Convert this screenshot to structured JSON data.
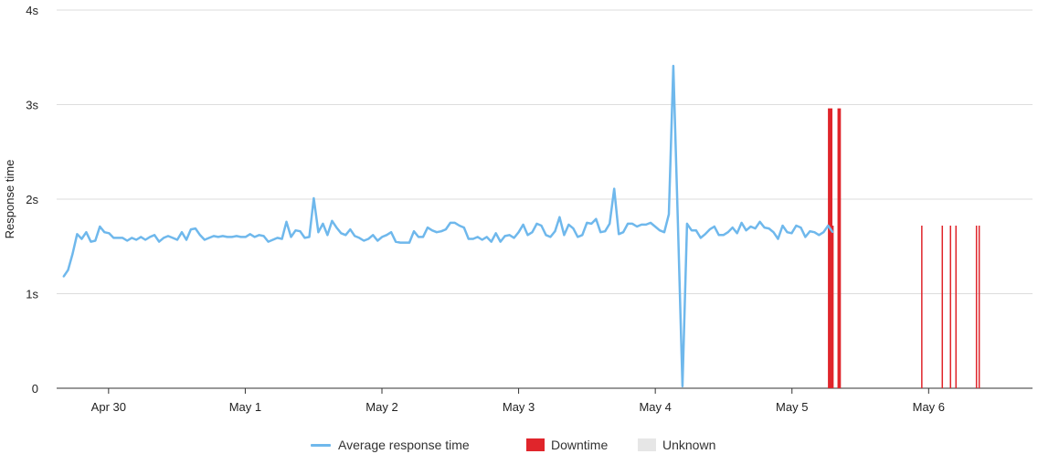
{
  "chart_data": {
    "type": "line",
    "title": "",
    "xlabel": "",
    "ylabel": "Response time",
    "ylim": [
      0,
      4
    ],
    "yticks": [
      {
        "value": 0,
        "label": "0"
      },
      {
        "value": 1,
        "label": "1s"
      },
      {
        "value": 2,
        "label": "2s"
      },
      {
        "value": 3,
        "label": "3s"
      },
      {
        "value": 4,
        "label": "4s"
      }
    ],
    "xticks": [
      {
        "value": 0,
        "label": "Apr 30"
      },
      {
        "value": 1,
        "label": "May 1"
      },
      {
        "value": 2,
        "label": "May 2"
      },
      {
        "value": 3,
        "label": "May 3"
      },
      {
        "value": 4,
        "label": "May 4"
      },
      {
        "value": 5,
        "label": "May 5"
      },
      {
        "value": 6,
        "label": "May 6"
      }
    ],
    "xlim": [
      -0.38,
      6.76
    ],
    "grid": true,
    "legend_position": "bottom",
    "series": [
      {
        "name": "Average response time",
        "color": "#6fb8ec",
        "x_start": -0.33,
        "x_step": 0.0333,
        "values": [
          1.18,
          1.25,
          1.42,
          1.63,
          1.58,
          1.65,
          1.55,
          1.56,
          1.71,
          1.65,
          1.64,
          1.59,
          1.59,
          1.59,
          1.56,
          1.59,
          1.57,
          1.6,
          1.57,
          1.6,
          1.62,
          1.55,
          1.59,
          1.61,
          1.59,
          1.57,
          1.65,
          1.57,
          1.68,
          1.69,
          1.62,
          1.57,
          1.59,
          1.61,
          1.6,
          1.61,
          1.6,
          1.6,
          1.61,
          1.6,
          1.6,
          1.63,
          1.6,
          1.62,
          1.61,
          1.55,
          1.57,
          1.59,
          1.58,
          1.76,
          1.6,
          1.67,
          1.66,
          1.59,
          1.6,
          2.01,
          1.65,
          1.74,
          1.62,
          1.77,
          1.7,
          1.64,
          1.62,
          1.68,
          1.61,
          1.59,
          1.56,
          1.58,
          1.62,
          1.56,
          1.6,
          1.62,
          1.65,
          1.55,
          1.54,
          1.54,
          1.54,
          1.66,
          1.6,
          1.6,
          1.7,
          1.67,
          1.65,
          1.66,
          1.68,
          1.75,
          1.75,
          1.72,
          1.7,
          1.58,
          1.58,
          1.6,
          1.57,
          1.6,
          1.55,
          1.64,
          1.55,
          1.61,
          1.62,
          1.59,
          1.65,
          1.73,
          1.62,
          1.65,
          1.74,
          1.72,
          1.62,
          1.6,
          1.66,
          1.81,
          1.62,
          1.73,
          1.69,
          1.6,
          1.62,
          1.75,
          1.74,
          1.79,
          1.65,
          1.66,
          1.74,
          2.11,
          1.63,
          1.65,
          1.74,
          1.74,
          1.71,
          1.73,
          1.73,
          1.75,
          1.71,
          1.67,
          1.65,
          1.84,
          3.41,
          1.75,
          0.02,
          1.74,
          1.67,
          1.67,
          1.59,
          1.63,
          1.68,
          1.71,
          1.62,
          1.62,
          1.65,
          1.7,
          1.64,
          1.75,
          1.67,
          1.71,
          1.69,
          1.76,
          1.7,
          1.69,
          1.65,
          1.58,
          1.72,
          1.65,
          1.64,
          1.72,
          1.7,
          1.6,
          1.66,
          1.65,
          1.62,
          1.65,
          1.72,
          1.65
        ]
      }
    ],
    "downtime": {
      "name": "Downtime",
      "color": "#e0252b",
      "bars": [
        {
          "x": 5.263,
          "w": 0.033
        },
        {
          "x": 5.333,
          "w": 0.025
        }
      ],
      "lines": [
        5.3,
        5.95,
        6.1,
        6.16,
        6.2,
        6.35,
        6.37
      ]
    },
    "unknown": {
      "name": "Unknown",
      "color": "#e6e6e6"
    }
  }
}
